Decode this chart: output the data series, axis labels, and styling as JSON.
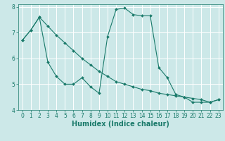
{
  "xlabel": "Humidex (Indice chaleur)",
  "background_color": "#cce8e8",
  "line_color": "#1a7a6a",
  "xlim": [
    -0.5,
    23.5
  ],
  "ylim": [
    4,
    8.1
  ],
  "yticks": [
    4,
    5,
    6,
    7,
    8
  ],
  "xticks": [
    0,
    1,
    2,
    3,
    4,
    5,
    6,
    7,
    8,
    9,
    10,
    11,
    12,
    13,
    14,
    15,
    16,
    17,
    18,
    19,
    20,
    21,
    22,
    23
  ],
  "line1_x": [
    0,
    1,
    2,
    3,
    4,
    5,
    6,
    7,
    8,
    9,
    10,
    11,
    12,
    13,
    14,
    15,
    16,
    17,
    18,
    19,
    20,
    21,
    22,
    23
  ],
  "line1_y": [
    6.7,
    7.1,
    7.6,
    7.25,
    6.9,
    6.6,
    6.3,
    6.0,
    5.75,
    5.5,
    5.3,
    5.1,
    5.0,
    4.9,
    4.8,
    4.75,
    4.65,
    4.6,
    4.55,
    4.5,
    4.45,
    4.4,
    4.3,
    4.4
  ],
  "line2_x": [
    0,
    1,
    2,
    3,
    4,
    5,
    6,
    7,
    8,
    9,
    10,
    11,
    12,
    13,
    14,
    15,
    16,
    17,
    18,
    19,
    20,
    21,
    22,
    23
  ],
  "line2_y": [
    6.7,
    7.1,
    7.6,
    5.85,
    5.3,
    5.0,
    5.0,
    5.25,
    4.9,
    4.65,
    6.85,
    7.9,
    7.95,
    7.7,
    7.65,
    7.65,
    5.65,
    5.25,
    4.6,
    4.5,
    4.3,
    4.3,
    4.3,
    4.4
  ],
  "grid_color": "#ffffff",
  "tick_color": "#1a7a6a",
  "xlabel_fontsize": 7,
  "tick_fontsize": 5.5
}
